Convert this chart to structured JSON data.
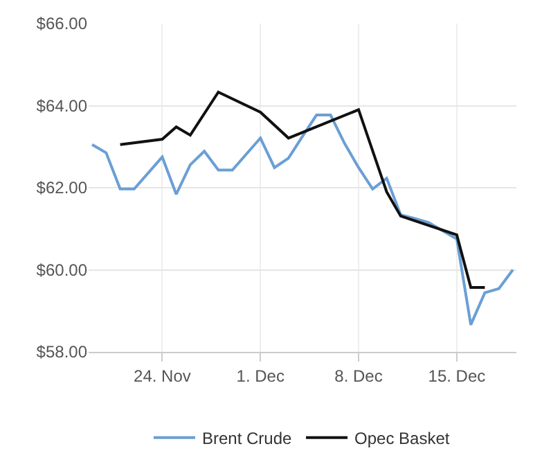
{
  "chart_data": {
    "type": "line",
    "xlim": [
      "--11-18T18:00",
      "--12-19T06:00"
    ],
    "xticks": [
      {
        "value": "--11-24",
        "label": "24. Nov"
      },
      {
        "value": "--12-01",
        "label": "1. Dec"
      },
      {
        "value": "--12-08",
        "label": "8. Dec"
      },
      {
        "value": "--12-15",
        "label": "15. Dec"
      }
    ],
    "ylim": [
      58,
      66
    ],
    "yticks": [
      {
        "value": 58,
        "label": "$58.00"
      },
      {
        "value": 60,
        "label": "$60.00"
      },
      {
        "value": 62,
        "label": "$62.00"
      },
      {
        "value": 64,
        "label": "$64.00"
      },
      {
        "value": 66,
        "label": "$66.00"
      }
    ],
    "grid": true,
    "legend": "bottom",
    "marker": "none",
    "line_style": "solid",
    "series": [
      {
        "name": "Brent Crude",
        "color": "#6a9fd4",
        "x": [
          "--11-19",
          "--11-20",
          "--11-21",
          "--11-22",
          "--11-24",
          "--11-25",
          "--11-26",
          "--11-27",
          "--11-28",
          "--11-29",
          "--12-01",
          "--12-02",
          "--12-03",
          "--12-04",
          "--12-05",
          "--12-06",
          "--12-07",
          "--12-08",
          "--12-09",
          "--12-10",
          "--12-11",
          "--12-12",
          "--12-13",
          "--12-14",
          "--12-15",
          "--12-16",
          "--12-17",
          "--12-18",
          "--12-19"
        ],
        "values": [
          63.05,
          62.85,
          61.97,
          61.97,
          62.75,
          61.84,
          62.56,
          62.89,
          62.43,
          62.43,
          63.21,
          62.49,
          62.72,
          63.25,
          63.77,
          63.77,
          63.08,
          62.49,
          61.97,
          62.23,
          61.34,
          61.25,
          61.15,
          60.95,
          60.75,
          58.66,
          59.44,
          59.54,
          60.0
        ]
      },
      {
        "name": "Opec Basket",
        "color": "#111111",
        "x": [
          "--11-21",
          "--11-24",
          "--11-25",
          "--11-26",
          "--11-28",
          "--12-01",
          "--12-03",
          "--12-08",
          "--12-10",
          "--12-11",
          "--12-15",
          "--12-16",
          "--12-17"
        ],
        "values": [
          63.05,
          63.18,
          63.48,
          63.28,
          64.33,
          63.84,
          63.21,
          63.9,
          61.9,
          61.31,
          60.85,
          59.57,
          59.57
        ]
      }
    ]
  }
}
